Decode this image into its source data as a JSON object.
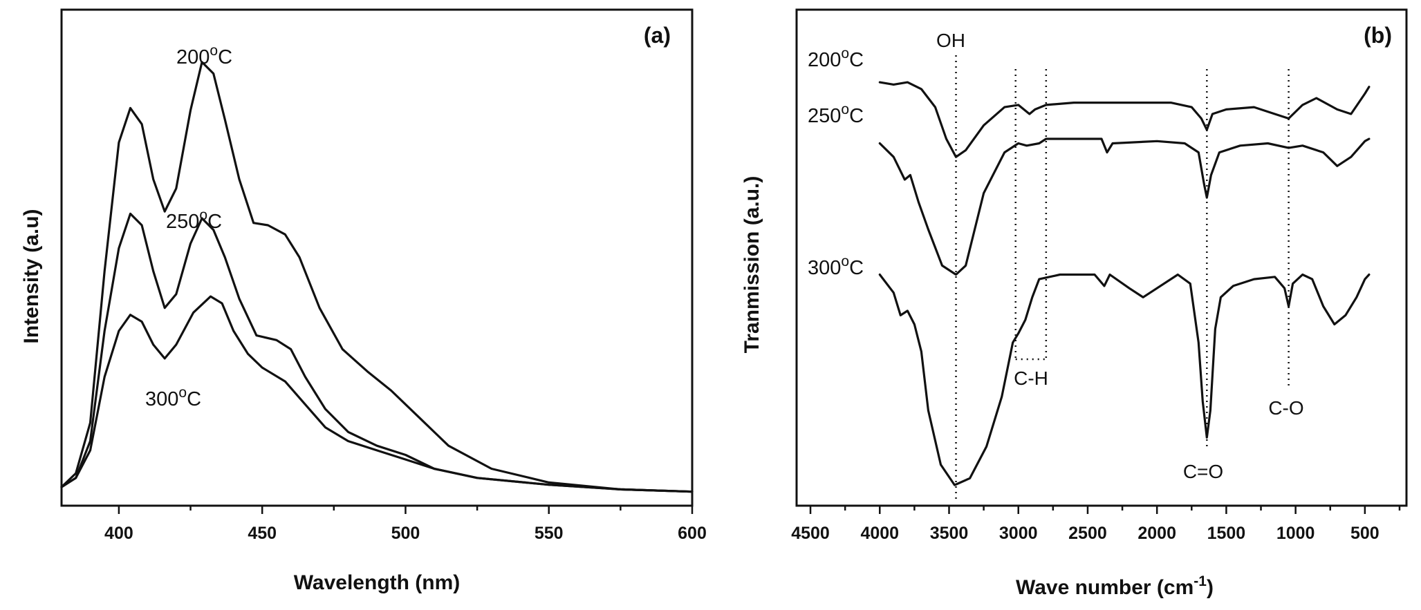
{
  "chart_data": [
    {
      "type": "line",
      "panel": "(a)",
      "xlabel": "Wavelength (nm)",
      "ylabel": "Intensity (a.u)",
      "xlim": [
        380,
        600
      ],
      "xticks": [
        "400",
        "450",
        "500",
        "550",
        "600"
      ],
      "y_ticks_shown": false,
      "series": [
        {
          "name": "200",
          "label": {
            "base": "200",
            "sup": "o",
            "unit": "C"
          },
          "points": [
            [
              380,
              0.03
            ],
            [
              385,
              0.06
            ],
            [
              390,
              0.17
            ],
            [
              395,
              0.5
            ],
            [
              400,
              0.78
            ],
            [
              404,
              0.855
            ],
            [
              408,
              0.82
            ],
            [
              412,
              0.7
            ],
            [
              416,
              0.63
            ],
            [
              420,
              0.68
            ],
            [
              425,
              0.85
            ],
            [
              429,
              0.955
            ],
            [
              433,
              0.93
            ],
            [
              437,
              0.83
            ],
            [
              442,
              0.7
            ],
            [
              447,
              0.605
            ],
            [
              452,
              0.6
            ],
            [
              458,
              0.58
            ],
            [
              463,
              0.53
            ],
            [
              470,
              0.42
            ],
            [
              478,
              0.33
            ],
            [
              487,
              0.28
            ],
            [
              495,
              0.24
            ],
            [
              505,
              0.18
            ],
            [
              515,
              0.12
            ],
            [
              530,
              0.07
            ],
            [
              550,
              0.04
            ],
            [
              575,
              0.025
            ],
            [
              600,
              0.02
            ]
          ]
        },
        {
          "name": "250",
          "label": {
            "base": "250",
            "sup": "o",
            "unit": "C"
          },
          "points": [
            [
              380,
              0.03
            ],
            [
              385,
              0.05
            ],
            [
              390,
              0.13
            ],
            [
              395,
              0.37
            ],
            [
              400,
              0.55
            ],
            [
              404,
              0.625
            ],
            [
              408,
              0.6
            ],
            [
              412,
              0.5
            ],
            [
              416,
              0.42
            ],
            [
              420,
              0.45
            ],
            [
              425,
              0.56
            ],
            [
              429,
              0.615
            ],
            [
              433,
              0.59
            ],
            [
              437,
              0.53
            ],
            [
              442,
              0.44
            ],
            [
              448,
              0.36
            ],
            [
              455,
              0.35
            ],
            [
              460,
              0.33
            ],
            [
              465,
              0.27
            ],
            [
              472,
              0.2
            ],
            [
              480,
              0.15
            ],
            [
              490,
              0.12
            ],
            [
              500,
              0.1
            ],
            [
              510,
              0.07
            ],
            [
              525,
              0.05
            ],
            [
              550,
              0.035
            ],
            [
              575,
              0.025
            ],
            [
              600,
              0.02
            ]
          ]
        },
        {
          "name": "300",
          "label": {
            "base": "300",
            "sup": "o",
            "unit": "C"
          },
          "points": [
            [
              380,
              0.03
            ],
            [
              385,
              0.05
            ],
            [
              390,
              0.11
            ],
            [
              395,
              0.27
            ],
            [
              400,
              0.37
            ],
            [
              404,
              0.405
            ],
            [
              408,
              0.39
            ],
            [
              412,
              0.34
            ],
            [
              416,
              0.31
            ],
            [
              420,
              0.34
            ],
            [
              426,
              0.41
            ],
            [
              432,
              0.445
            ],
            [
              436,
              0.43
            ],
            [
              440,
              0.37
            ],
            [
              445,
              0.32
            ],
            [
              450,
              0.29
            ],
            [
              458,
              0.26
            ],
            [
              465,
              0.21
            ],
            [
              472,
              0.16
            ],
            [
              480,
              0.13
            ],
            [
              490,
              0.11
            ],
            [
              500,
              0.09
            ],
            [
              510,
              0.07
            ],
            [
              525,
              0.05
            ],
            [
              550,
              0.035
            ],
            [
              575,
              0.025
            ],
            [
              600,
              0.02
            ]
          ]
        }
      ]
    },
    {
      "type": "line",
      "panel": "(b)",
      "xlabel": {
        "base": "Wave number (cm",
        "sup": "-1",
        "tail": ")"
      },
      "ylabel": "Tranmission (a.u.)",
      "xlim": [
        4600,
        200
      ],
      "xticks": [
        "4500",
        "4000",
        "3500",
        "3000",
        "2500",
        "2000",
        "1500",
        "1000",
        "500"
      ],
      "y_ticks_shown": false,
      "annotations": [
        {
          "text": "OH",
          "x": 3450
        },
        {
          "text": "C-H",
          "x_range": [
            3020,
            2800
          ]
        },
        {
          "text": "C=O",
          "x": 1640
        },
        {
          "text": "C-O",
          "x": 1050
        }
      ],
      "series": [
        {
          "name": "200",
          "label": {
            "base": "200",
            "sup": "o",
            "unit": "C"
          },
          "points": [
            [
              4000,
              0.925
            ],
            [
              3900,
              0.92
            ],
            [
              3800,
              0.925
            ],
            [
              3700,
              0.91
            ],
            [
              3600,
              0.87
            ],
            [
              3520,
              0.8
            ],
            [
              3450,
              0.76
            ],
            [
              3380,
              0.775
            ],
            [
              3250,
              0.83
            ],
            [
              3100,
              0.87
            ],
            [
              3000,
              0.875
            ],
            [
              2920,
              0.855
            ],
            [
              2880,
              0.865
            ],
            [
              2800,
              0.875
            ],
            [
              2600,
              0.88
            ],
            [
              2200,
              0.88
            ],
            [
              1900,
              0.88
            ],
            [
              1750,
              0.87
            ],
            [
              1680,
              0.845
            ],
            [
              1640,
              0.82
            ],
            [
              1600,
              0.855
            ],
            [
              1500,
              0.865
            ],
            [
              1300,
              0.87
            ],
            [
              1150,
              0.855
            ],
            [
              1050,
              0.845
            ],
            [
              950,
              0.875
            ],
            [
              850,
              0.89
            ],
            [
              700,
              0.865
            ],
            [
              600,
              0.855
            ],
            [
              500,
              0.9
            ],
            [
              470,
              0.915
            ]
          ]
        },
        {
          "name": "250",
          "label": {
            "base": "250",
            "sup": "o",
            "unit": "C"
          },
          "points": [
            [
              4000,
              0.79
            ],
            [
              3900,
              0.76
            ],
            [
              3820,
              0.71
            ],
            [
              3780,
              0.72
            ],
            [
              3720,
              0.66
            ],
            [
              3650,
              0.6
            ],
            [
              3550,
              0.52
            ],
            [
              3450,
              0.5
            ],
            [
              3380,
              0.52
            ],
            [
              3250,
              0.68
            ],
            [
              3100,
              0.77
            ],
            [
              3000,
              0.79
            ],
            [
              2940,
              0.785
            ],
            [
              2850,
              0.79
            ],
            [
              2800,
              0.8
            ],
            [
              2400,
              0.8
            ],
            [
              2360,
              0.77
            ],
            [
              2320,
              0.79
            ],
            [
              2000,
              0.795
            ],
            [
              1800,
              0.79
            ],
            [
              1700,
              0.77
            ],
            [
              1660,
              0.7
            ],
            [
              1640,
              0.67
            ],
            [
              1610,
              0.72
            ],
            [
              1550,
              0.77
            ],
            [
              1400,
              0.785
            ],
            [
              1200,
              0.79
            ],
            [
              1050,
              0.78
            ],
            [
              950,
              0.785
            ],
            [
              800,
              0.77
            ],
            [
              700,
              0.74
            ],
            [
              600,
              0.76
            ],
            [
              500,
              0.795
            ],
            [
              470,
              0.8
            ]
          ]
        },
        {
          "name": "300",
          "label": {
            "base": "300",
            "sup": "o",
            "unit": "C"
          },
          "points": [
            [
              4000,
              0.5
            ],
            [
              3900,
              0.46
            ],
            [
              3850,
              0.41
            ],
            [
              3800,
              0.42
            ],
            [
              3750,
              0.39
            ],
            [
              3700,
              0.33
            ],
            [
              3650,
              0.2
            ],
            [
              3560,
              0.08
            ],
            [
              3460,
              0.035
            ],
            [
              3350,
              0.05
            ],
            [
              3230,
              0.12
            ],
            [
              3120,
              0.23
            ],
            [
              3040,
              0.35
            ],
            [
              3000,
              0.37
            ],
            [
              2950,
              0.4
            ],
            [
              2900,
              0.45
            ],
            [
              2850,
              0.49
            ],
            [
              2700,
              0.5
            ],
            [
              2450,
              0.5
            ],
            [
              2380,
              0.475
            ],
            [
              2340,
              0.5
            ],
            [
              2200,
              0.47
            ],
            [
              2100,
              0.45
            ],
            [
              2000,
              0.47
            ],
            [
              1850,
              0.5
            ],
            [
              1760,
              0.48
            ],
            [
              1700,
              0.35
            ],
            [
              1670,
              0.22
            ],
            [
              1640,
              0.14
            ],
            [
              1615,
              0.2
            ],
            [
              1580,
              0.38
            ],
            [
              1540,
              0.45
            ],
            [
              1450,
              0.475
            ],
            [
              1300,
              0.49
            ],
            [
              1150,
              0.495
            ],
            [
              1080,
              0.47
            ],
            [
              1050,
              0.43
            ],
            [
              1020,
              0.48
            ],
            [
              950,
              0.5
            ],
            [
              880,
              0.49
            ],
            [
              800,
              0.43
            ],
            [
              720,
              0.39
            ],
            [
              640,
              0.41
            ],
            [
              560,
              0.45
            ],
            [
              500,
              0.49
            ],
            [
              470,
              0.5
            ]
          ]
        }
      ]
    }
  ]
}
